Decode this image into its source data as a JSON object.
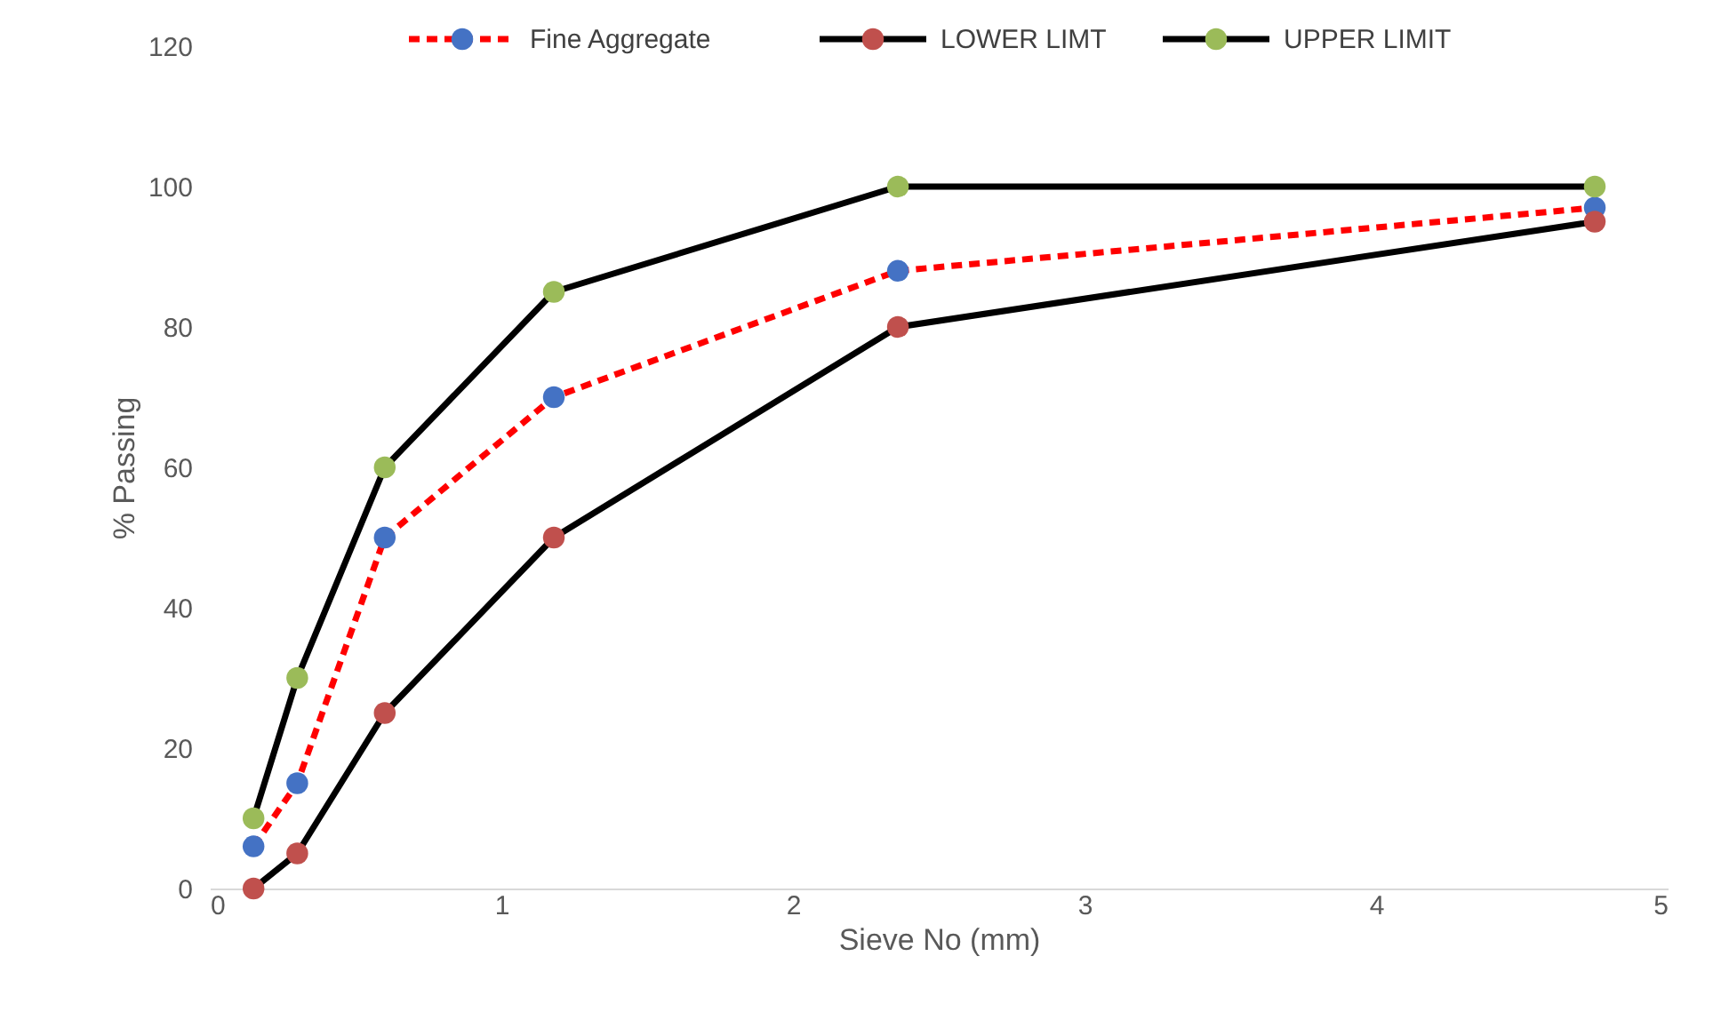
{
  "chart_data": {
    "type": "line",
    "xlabel": "Sieve No (mm)",
    "ylabel": "% Passing",
    "x": [
      0.15,
      0.3,
      0.6,
      1.18,
      2.36,
      4.75
    ],
    "series": [
      {
        "name": "Fine Aggregate",
        "color": "#ff0000",
        "colors": [
          "#4472c4",
          "#4472c4",
          "#4472c4",
          "#4472c4",
          "#4472c4",
          "#4472c4"
        ],
        "line_style": "dashed",
        "values": [
          6,
          15,
          50,
          70,
          88,
          97
        ]
      },
      {
        "name": "LOWER LIMT",
        "color": "#000000",
        "colors": [
          "#c0504d",
          "#c0504d",
          "#c0504d",
          "#c0504d",
          "#c0504d",
          "#c0504d"
        ],
        "line_style": "solid",
        "values": [
          0,
          5,
          25,
          50,
          80,
          95
        ]
      },
      {
        "name": "UPPER LIMIT",
        "color": "#000000",
        "colors": [
          "#9bbb59",
          "#9bbb59",
          "#9bbb59",
          "#9bbb59",
          "#9bbb59",
          "#9bbb59"
        ],
        "line_style": "solid",
        "values": [
          10,
          30,
          60,
          85,
          100,
          100
        ]
      }
    ],
    "xlim": [
      0,
      5
    ],
    "xticks": [
      0,
      1,
      2,
      3,
      4,
      5
    ],
    "ylim": [
      0,
      120
    ],
    "yticks": [
      0,
      20,
      40,
      60,
      80,
      100,
      120
    ],
    "grid": false,
    "legend": "top right",
    "marker": "circle"
  }
}
